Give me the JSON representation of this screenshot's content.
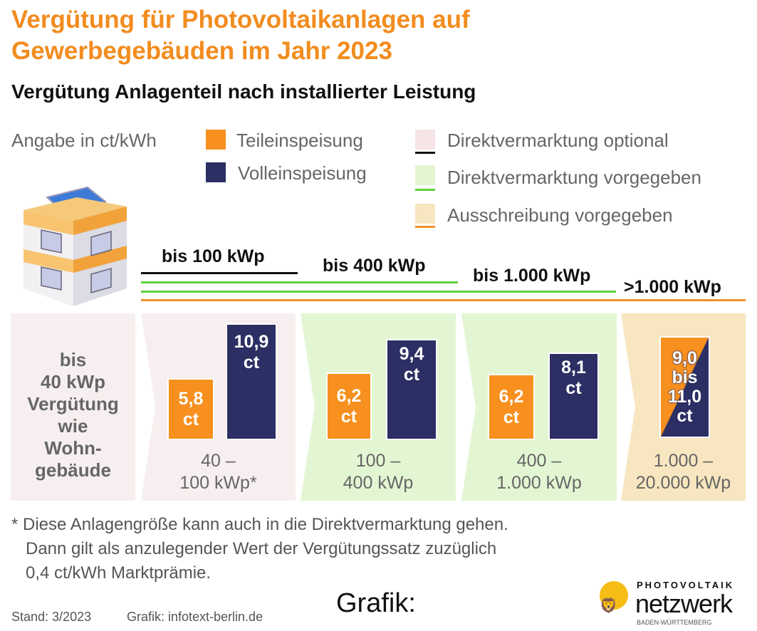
{
  "title": [
    "Vergütung für Photovoltaikanlagen auf",
    "Gewerbegebäuden im Jahr 2023"
  ],
  "subtitle": "Vergütung Anlagenteil nach installierter Leistung",
  "legend": {
    "unit": "Angabe in ct/kWh",
    "teil": "Teileinspeisung",
    "voll": "Volleinspeisung",
    "dv_optional": "Direktvermarktung optional",
    "dv_vorgegeben": "Direktvermarktung vorgegeben",
    "ausschreibung": "Ausschreibung vorgegeben"
  },
  "colors": {
    "orange": "#f7901e",
    "navy": "#2b2f63",
    "pink": "#f7efef",
    "green": "#e3f6d3",
    "beige": "#f7e6bf",
    "title": "#f28c1e"
  },
  "limits": [
    "bis 100 kWp",
    "bis 400 kWp",
    "bis 1.000 kWp",
    ">1.000 kWp"
  ],
  "panels": [
    {
      "text": [
        "bis",
        "40 kWp",
        "Vergütung",
        "wie",
        "Wohn-",
        "gebäude"
      ]
    },
    {
      "teil": [
        "5,8",
        "ct"
      ],
      "voll": [
        "10,9",
        "ct"
      ],
      "teil_value": 5.8,
      "voll_value": 10.9,
      "range": [
        "40 –",
        "100 kWp*"
      ]
    },
    {
      "teil": [
        "6,2",
        "ct"
      ],
      "voll": [
        "9,4",
        "ct"
      ],
      "teil_value": 6.2,
      "voll_value": 9.4,
      "range": [
        "100 –",
        "400 kWp"
      ]
    },
    {
      "teil": [
        "6,2",
        "ct"
      ],
      "voll": [
        "8,1",
        "ct"
      ],
      "teil_value": 6.2,
      "voll_value": 8.1,
      "range": [
        "400 –",
        "1.000 kWp"
      ]
    },
    {
      "combined": [
        "9,0",
        "bis",
        "11,0",
        "ct"
      ],
      "range": [
        "1.000 –",
        "20.000 kWp"
      ]
    }
  ],
  "footnote": "* Diese Anlagengröße kann auch in die Direktvermarktung gehen.\n   Dann gilt als anzulegender Wert der Vergütungssatz zuzüglich\n   0,4 ct/kWh Marktprämie.",
  "stand": "Stand: 3/2023",
  "grafik_credit": "Grafik: infotext-berlin.de",
  "grafik_label": "Grafik:",
  "logo": {
    "top": "PHOTOVOLTAIK",
    "main": "netzwerk",
    "sub": "BADEN-WÜRTTEMBERG"
  }
}
